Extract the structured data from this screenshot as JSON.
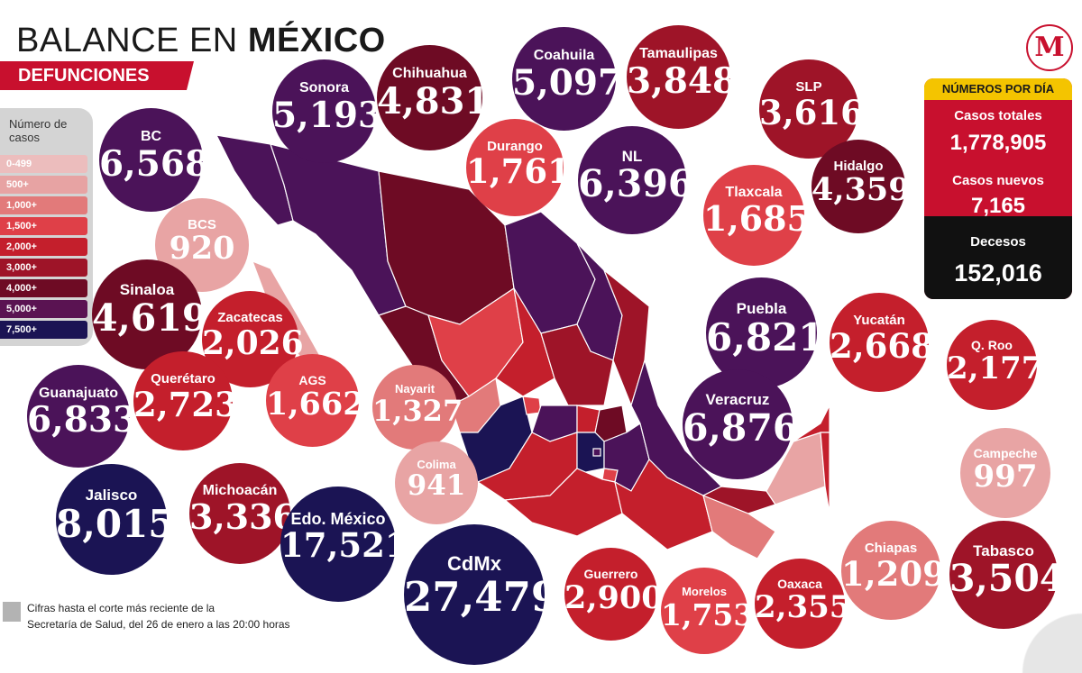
{
  "header": {
    "title_light": "BALANCE EN ",
    "title_bold": "MÉXICO",
    "subtitle": "DEFUNCIONES"
  },
  "logo": {
    "letter": "M"
  },
  "legend": {
    "title": "Número de casos",
    "items": [
      {
        "label": "0-499",
        "color": "#ecbdbd"
      },
      {
        "label": "500+",
        "color": "#e7a3a3"
      },
      {
        "label": "1,000+",
        "color": "#e27a7a"
      },
      {
        "label": "1,500+",
        "color": "#df4048"
      },
      {
        "label": "2,000+",
        "color": "#c41f2c"
      },
      {
        "label": "3,000+",
        "color": "#9e1428"
      },
      {
        "label": "4,000+",
        "color": "#6e0b24"
      },
      {
        "label": "5,000+",
        "color": "#5a1352"
      },
      {
        "label": "7,500+",
        "color": "#1b1454"
      }
    ]
  },
  "states": [
    {
      "name": "BC",
      "value": "6,568",
      "color": "#4b1359"
    },
    {
      "name": "Sonora",
      "value": "5,193",
      "color": "#4b1359"
    },
    {
      "name": "Chihuahua",
      "value": "4,831",
      "color": "#6e0b24"
    },
    {
      "name": "Coahuila",
      "value": "5,097",
      "color": "#4b1359"
    },
    {
      "name": "Tamaulipas",
      "value": "3,848",
      "color": "#9e1428"
    },
    {
      "name": "SLP",
      "value": "3,616",
      "color": "#9e1428"
    },
    {
      "name": "BCS",
      "value": "920",
      "color": "#e8a4a4"
    },
    {
      "name": "Durango",
      "value": "1,761",
      "color": "#df4048"
    },
    {
      "name": "NL",
      "value": "6,396",
      "color": "#4b1359"
    },
    {
      "name": "Tlaxcala",
      "value": "1,685",
      "color": "#df4048"
    },
    {
      "name": "Hidalgo",
      "value": "4,359",
      "color": "#6e0b24"
    },
    {
      "name": "Sinaloa",
      "value": "4,619",
      "color": "#6e0b24"
    },
    {
      "name": "Zacatecas",
      "value": "2,026",
      "color": "#c41f2c"
    },
    {
      "name": "Puebla",
      "value": "6,821",
      "color": "#4b1359"
    },
    {
      "name": "Yucatán",
      "value": "2,668",
      "color": "#c41f2c"
    },
    {
      "name": "Q. Roo",
      "value": "2,177",
      "color": "#c41f2c"
    },
    {
      "name": "Guanajuato",
      "value": "6,833",
      "color": "#4b1359"
    },
    {
      "name": "Querétaro",
      "value": "2,723",
      "color": "#c41f2c"
    },
    {
      "name": "AGS",
      "value": "1,662",
      "color": "#df4048"
    },
    {
      "name": "Nayarit",
      "value": "1,327",
      "color": "#e27a7a"
    },
    {
      "name": "Veracruz",
      "value": "6,876",
      "color": "#4b1359"
    },
    {
      "name": "Campeche",
      "value": "997",
      "color": "#e8a4a4"
    },
    {
      "name": "Colima",
      "value": "941",
      "color": "#e8a4a4"
    },
    {
      "name": "Jalisco",
      "value": "8,015",
      "color": "#1b1454"
    },
    {
      "name": "Michoacán",
      "value": "3,336",
      "color": "#9e1428"
    },
    {
      "name": "Edo. México",
      "value": "17,521",
      "color": "#1b1454"
    },
    {
      "name": "CdMx",
      "value": "27,479",
      "color": "#1b1454"
    },
    {
      "name": "Guerrero",
      "value": "2,900",
      "color": "#c41f2c"
    },
    {
      "name": "Morelos",
      "value": "1,753",
      "color": "#df4048"
    },
    {
      "name": "Oaxaca",
      "value": "2,355",
      "color": "#c41f2c"
    },
    {
      "name": "Chiapas",
      "value": "1,209",
      "color": "#e27a7a"
    },
    {
      "name": "Tabasco",
      "value": "3,504",
      "color": "#9e1428"
    }
  ],
  "stats": {
    "heading": "NÚMEROS POR DÍA",
    "total_label": "Casos totales",
    "total_value": "1,778,905",
    "new_label": "Casos nuevos",
    "new_value": "7,165",
    "deaths_label": "Decesos",
    "deaths_value": "152,016"
  },
  "footnote": {
    "line1": "Cifras hasta el corte más reciente de la",
    "line2": "Secretaría de Salud, del 26 de enero a las 20:00 horas"
  }
}
